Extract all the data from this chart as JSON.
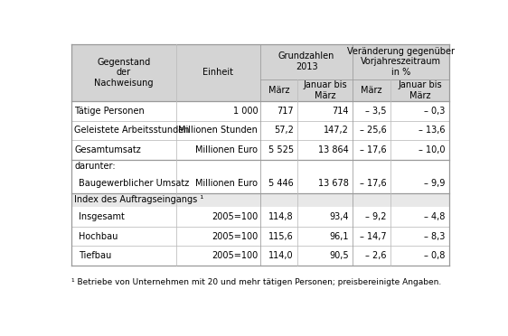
{
  "footnote": "¹ Betriebe von Unternehmen mit 20 und mehr tätigen Personen; preisbereinigte Angaben.",
  "rows": [
    {
      "label": "Tätige Personen",
      "indent": false,
      "einheit": "1 000",
      "values": [
        "717",
        "714",
        "– 3,5",
        "– 0,3"
      ],
      "section_header": false
    },
    {
      "label": "Geleistete Arbeitsstunden",
      "indent": false,
      "einheit": "Millionen Stunden",
      "values": [
        "57,2",
        "147,2",
        "– 25,6",
        "– 13,6"
      ],
      "section_header": false
    },
    {
      "label": "Gesamtumsatz",
      "indent": false,
      "einheit": "Millionen Euro",
      "values": [
        "5 525",
        "13 864",
        "– 17,6",
        "– 10,0"
      ],
      "section_header": false
    },
    {
      "label": "darunter:",
      "indent": false,
      "einheit": "",
      "values": [
        "",
        "",
        "",
        ""
      ],
      "section_header": false,
      "label_only": true
    },
    {
      "label": "Baugewerblicher Umsatz",
      "indent": true,
      "einheit": "Millionen Euro",
      "values": [
        "5 446",
        "13 678",
        "– 17,6",
        "– 9,9"
      ],
      "section_header": false
    },
    {
      "label": "Index des Auftragseingangs ¹",
      "indent": false,
      "einheit": "",
      "values": [
        "",
        "",
        "",
        ""
      ],
      "section_header": true,
      "label_only": true
    },
    {
      "label": "Insgesamt",
      "indent": true,
      "einheit": "2005=100",
      "values": [
        "114,8",
        "93,4",
        "– 9,2",
        "– 4,8"
      ],
      "section_header": false
    },
    {
      "label": "Hochbau",
      "indent": true,
      "einheit": "2005=100",
      "values": [
        "115,6",
        "96,1",
        "– 14,7",
        "– 8,3"
      ],
      "section_header": false
    },
    {
      "label": "Tiefbau",
      "indent": true,
      "einheit": "2005=100",
      "values": [
        "114,0",
        "90,5",
        "– 2,6",
        "– 0,8"
      ],
      "section_header": false
    }
  ],
  "header_bg": "#d4d4d4",
  "section_bg": "#e8e8e8",
  "white_bg": "#ffffff",
  "border_dark": "#999999",
  "border_light": "#bbbbbb",
  "text_color": "#000000",
  "font_size": 7.0,
  "col_props": [
    0.23,
    0.185,
    0.082,
    0.122,
    0.082,
    0.13
  ]
}
